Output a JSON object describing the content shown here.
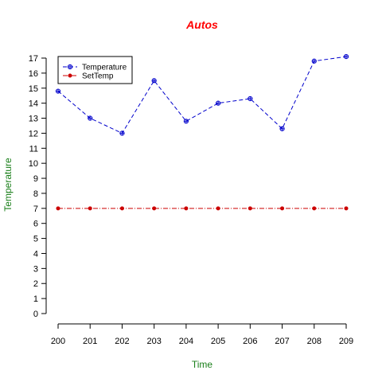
{
  "chart_data": {
    "type": "line",
    "title": "Autos",
    "xlabel": "Time",
    "ylabel": "Temperature",
    "x": [
      200,
      201,
      202,
      203,
      204,
      205,
      206,
      207,
      208,
      209
    ],
    "xlim": [
      200,
      209
    ],
    "ylim": [
      0,
      17
    ],
    "yticks": [
      0,
      1,
      2,
      3,
      4,
      5,
      6,
      7,
      8,
      9,
      10,
      11,
      12,
      13,
      14,
      15,
      16,
      17
    ],
    "grid": false,
    "legend_position": "top-left",
    "colors": {
      "title": "#ff0000",
      "axis_labels": "#1a7f1a"
    },
    "series": [
      {
        "name": "Temperature",
        "color": "#0000cc",
        "linestyle": "dashed",
        "marker": "circle-plus",
        "values": [
          14.8,
          13.0,
          12.0,
          15.5,
          12.8,
          14.0,
          14.3,
          12.3,
          16.8,
          17.1
        ]
      },
      {
        "name": "SetTemp",
        "color": "#cc0000",
        "linestyle": "dash-dot",
        "marker": "dot",
        "values": [
          7,
          7,
          7,
          7,
          7,
          7,
          7,
          7,
          7,
          7
        ]
      }
    ]
  }
}
